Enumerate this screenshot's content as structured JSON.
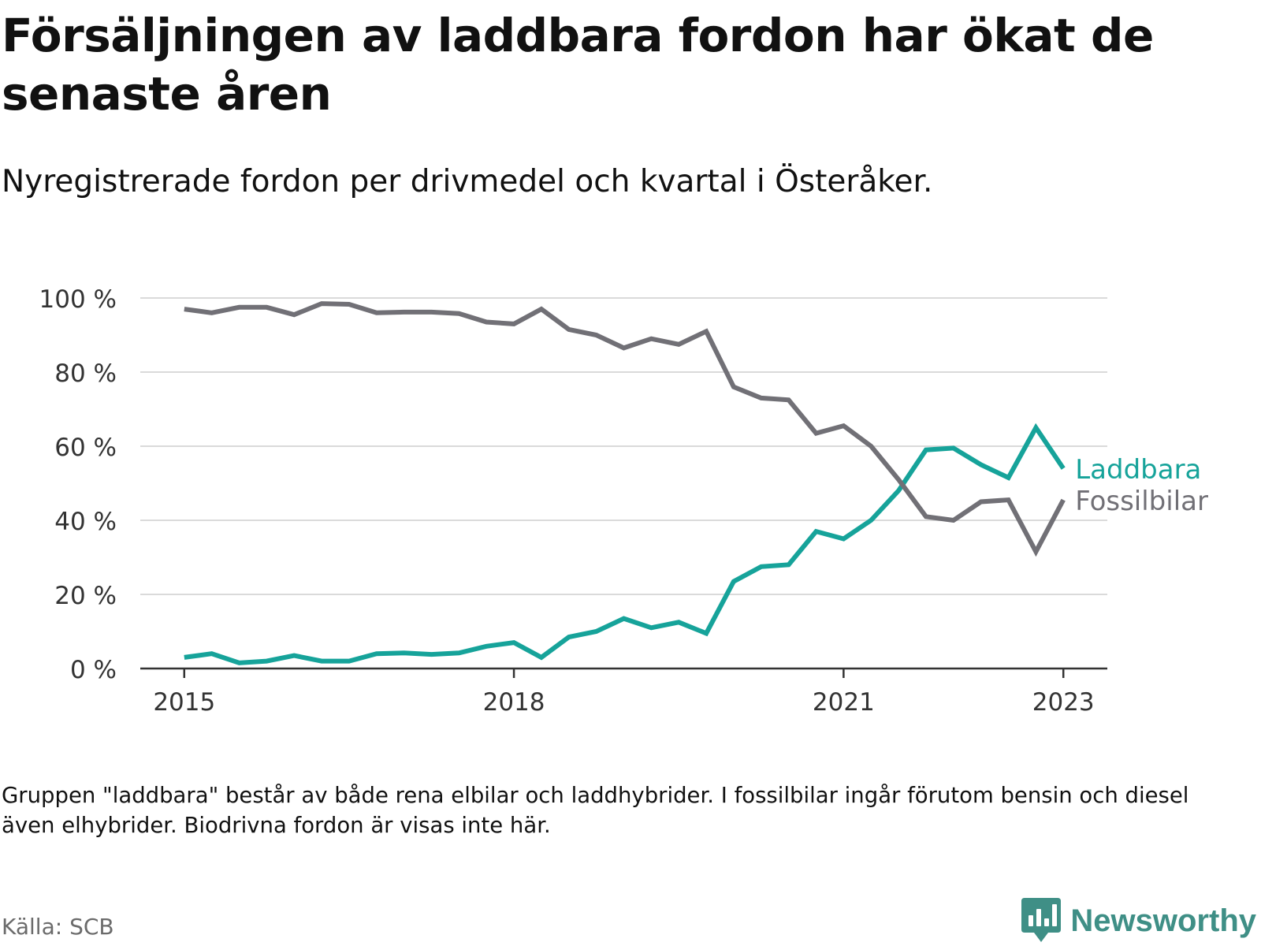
{
  "title": "Försäljningen av laddbara fordon har ökat de senaste åren",
  "subtitle": "Nyregistrerade fordon per drivmedel och kvartal i Österåker.",
  "note": "Gruppen \"laddbara\" består av både rena elbilar och laddhybrider. I fossilbilar ingår förutom bensin och diesel även elhybrider. Biodrivna fordon är visas inte här.",
  "source": "Källa: SCB",
  "brand": {
    "name": "Newsworthy",
    "logo_icon": "newsworthy-logo-icon"
  },
  "colors": {
    "laddbara": "#16a39a",
    "fossil": "#717076",
    "grid": "#dadada",
    "axis": "#333333",
    "tick_text": "#333333"
  },
  "chart_data": {
    "type": "line",
    "title": "Nyregistrerade fordon per drivmedel och kvartal i Österåker.",
    "xlabel": "",
    "ylabel": "",
    "x": [
      2015.0,
      2015.25,
      2015.5,
      2015.75,
      2016.0,
      2016.25,
      2016.5,
      2016.75,
      2017.0,
      2017.25,
      2017.5,
      2017.75,
      2018.0,
      2018.25,
      2018.5,
      2018.75,
      2019.0,
      2019.25,
      2019.5,
      2019.75,
      2020.0,
      2020.25,
      2020.5,
      2020.75,
      2021.0,
      2021.25,
      2021.5,
      2021.75,
      2022.0,
      2022.25,
      2022.5,
      2022.75,
      2023.0
    ],
    "series": [
      {
        "name": "Laddbara",
        "color_key": "laddbara",
        "values": [
          3,
          4,
          1.5,
          2,
          3.5,
          2,
          2,
          4,
          4.2,
          3.8,
          4.2,
          6,
          7,
          3,
          8.5,
          10,
          13.5,
          11,
          12.5,
          9.5,
          23.5,
          27.5,
          28,
          37,
          35,
          40,
          48,
          59,
          59.5,
          55,
          51.5,
          65,
          54
        ]
      },
      {
        "name": "Fossilbilar",
        "color_key": "fossil",
        "values": [
          97,
          96,
          97.5,
          97.5,
          95.5,
          98.5,
          98.3,
          96,
          96.2,
          96.2,
          95.8,
          93.5,
          93,
          97,
          91.5,
          90,
          86.5,
          89,
          87.5,
          91,
          76,
          73,
          72.5,
          63.5,
          65.5,
          60,
          51,
          41,
          40,
          45,
          45.5,
          31.5,
          45.5
        ]
      }
    ],
    "xticks": [
      2015,
      2018,
      2021,
      2023
    ],
    "xtick_labels": [
      "2015",
      "2018",
      "2021",
      "2023"
    ],
    "yticks": [
      0,
      20,
      40,
      60,
      80,
      100
    ],
    "ytick_labels": [
      "0 %",
      "20 %",
      "40 %",
      "60 %",
      "80 %",
      "100 %"
    ],
    "xlim": [
      2014.6,
      2023.4
    ],
    "ylim": [
      0,
      100
    ],
    "grid": true,
    "legend": "inline labels at right end of lines"
  }
}
